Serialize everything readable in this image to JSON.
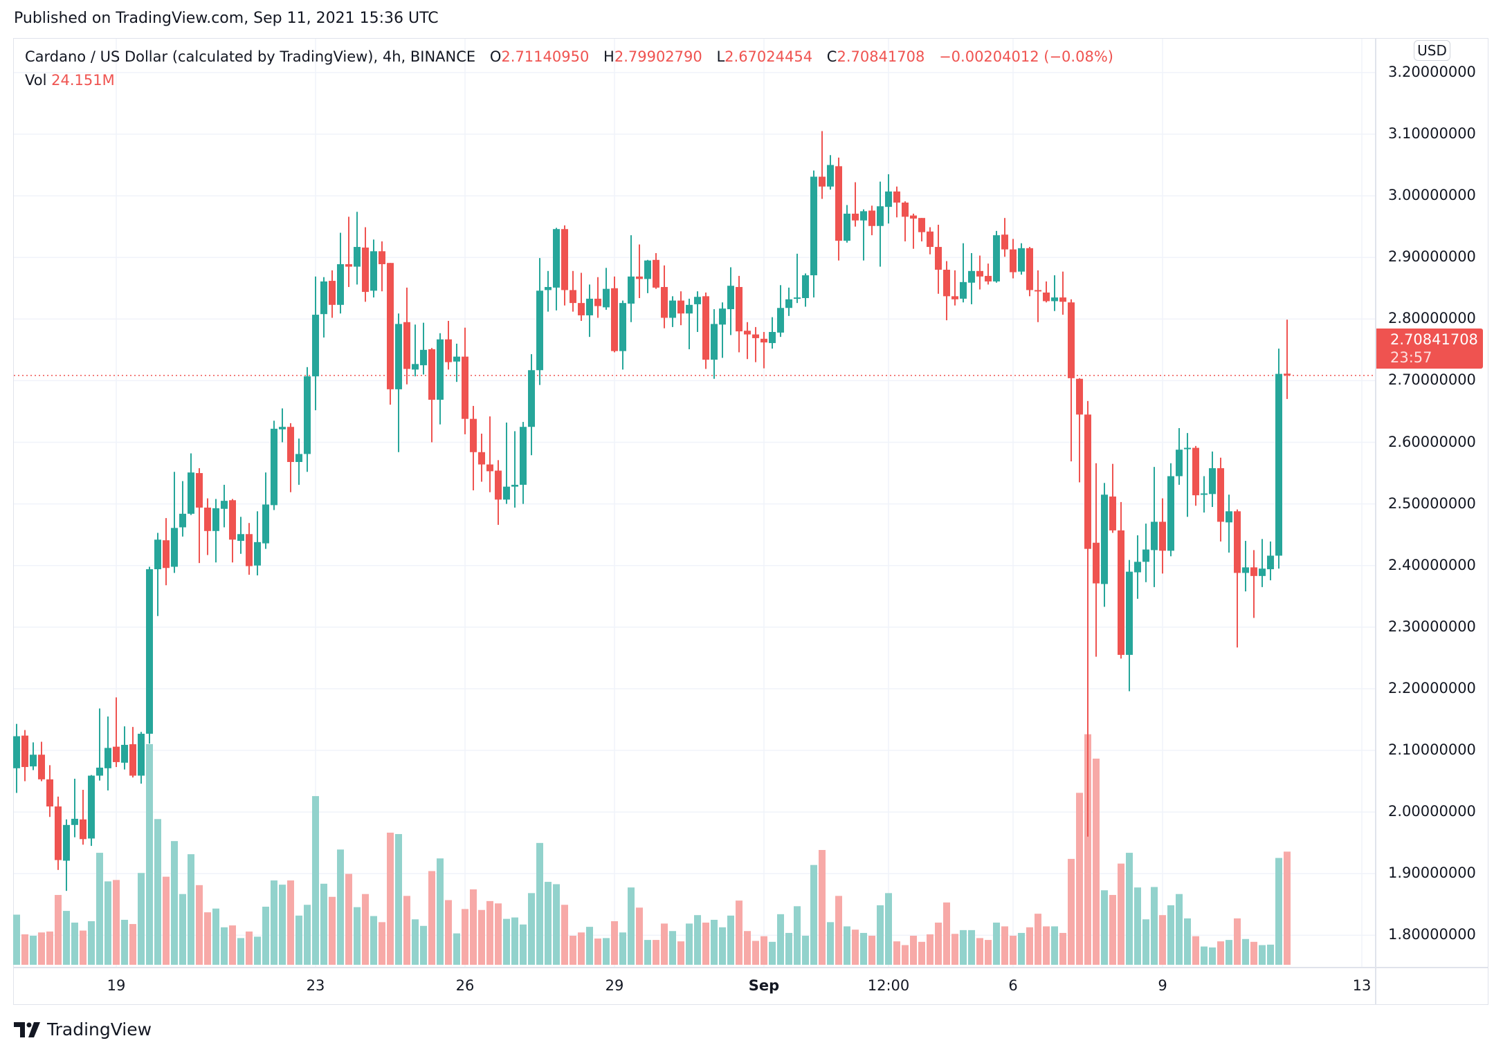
{
  "published": "Published on TradingView.com, Sep 11, 2021 15:36 UTC",
  "legend": {
    "symbol": "Cardano / US Dollar (calculated by TradingView), 4h, BINANCE",
    "o_label": "O",
    "o_value": "2.71140950",
    "h_label": "H",
    "h_value": "2.79902790",
    "l_label": "L",
    "l_value": "2.67024454",
    "c_label": "C",
    "c_value": "2.70841708",
    "change": "−0.00204012 (−0.08%)",
    "vol_label": "Vol",
    "vol_value": "24.151M"
  },
  "currency_button": "USD",
  "last_price": {
    "value": "2.70841708",
    "countdown": "23:57"
  },
  "logo_text": "TradingView",
  "colors": {
    "up": "#26a69a",
    "down": "#ef5350",
    "up_volume": "#92d2cc",
    "down_volume": "#f7a9a7",
    "grid": "#f0f3fa",
    "text": "#131722"
  },
  "chart_data": {
    "type": "candlestick",
    "interval": "4h",
    "y_ticks": [
      "3.20000000",
      "3.10000000",
      "3.00000000",
      "2.90000000",
      "2.80000000",
      "2.70000000",
      "2.60000000",
      "2.50000000",
      "2.40000000",
      "2.30000000",
      "2.20000000",
      "2.10000000",
      "2.00000000",
      "1.90000000",
      "1.80000000"
    ],
    "x_ticks": [
      "19",
      "23",
      "26",
      "29",
      "Sep",
      "12:00",
      "6",
      "9",
      "13"
    ],
    "ylim": [
      1.75,
      3.2
    ],
    "grid": true,
    "volume_unit": "M",
    "candle_fields": [
      "open",
      "high",
      "low",
      "close",
      "volume"
    ],
    "candles": [
      [
        2.071,
        2.143,
        2.031,
        2.123,
        10.7
      ],
      [
        2.124,
        2.133,
        2.05,
        2.073,
        6.5
      ],
      [
        2.074,
        2.113,
        2.068,
        2.093,
        6.2
      ],
      [
        2.093,
        2.114,
        2.05,
        2.053,
        6.9
      ],
      [
        2.053,
        2.076,
        1.992,
        2.009,
        7.1
      ],
      [
        2.009,
        2.025,
        1.906,
        1.922,
        14.9
      ],
      [
        1.921,
        1.988,
        1.872,
        1.979,
        11.5
      ],
      [
        1.979,
        2.054,
        1.959,
        1.989,
        9.0
      ],
      [
        1.988,
        2.036,
        1.947,
        1.956,
        7.3
      ],
      [
        1.957,
        2.06,
        1.945,
        2.059,
        9.3
      ],
      [
        2.059,
        2.168,
        2.051,
        2.072,
        23.9
      ],
      [
        2.071,
        2.155,
        2.035,
        2.104,
        17.8
      ],
      [
        2.106,
        2.186,
        2.073,
        2.081,
        18.1
      ],
      [
        2.08,
        2.139,
        2.069,
        2.109,
        9.6
      ],
      [
        2.11,
        2.138,
        2.056,
        2.059,
        8.7
      ],
      [
        2.059,
        2.13,
        2.046,
        2.127,
        19.6
      ],
      [
        2.127,
        2.398,
        2.111,
        2.394,
        47.1
      ],
      [
        2.394,
        2.453,
        2.318,
        2.442,
        31.1
      ],
      [
        2.441,
        2.477,
        2.368,
        2.396,
        18.8
      ],
      [
        2.398,
        2.552,
        2.388,
        2.461,
        26.4
      ],
      [
        2.462,
        2.537,
        2.447,
        2.484,
        15.1
      ],
      [
        2.484,
        2.582,
        2.482,
        2.551,
        23.6
      ],
      [
        2.55,
        2.558,
        2.404,
        2.494,
        17.0
      ],
      [
        2.494,
        2.509,
        2.417,
        2.456,
        11.2
      ],
      [
        2.456,
        2.508,
        2.405,
        2.493,
        12.0
      ],
      [
        2.492,
        2.531,
        2.462,
        2.505,
        8.0
      ],
      [
        2.506,
        2.508,
        2.405,
        2.442,
        8.4
      ],
      [
        2.44,
        2.479,
        2.419,
        2.451,
        5.7
      ],
      [
        2.451,
        2.469,
        2.385,
        2.399,
        7.1
      ],
      [
        2.4,
        2.488,
        2.384,
        2.438,
        6.0
      ],
      [
        2.436,
        2.551,
        2.427,
        2.499,
        12.4
      ],
      [
        2.498,
        2.635,
        2.49,
        2.622,
        18.0
      ],
      [
        2.621,
        2.655,
        2.6,
        2.625,
        17.1
      ],
      [
        2.625,
        2.631,
        2.519,
        2.568,
        18.0
      ],
      [
        2.568,
        2.606,
        2.531,
        2.581,
        10.5
      ],
      [
        2.581,
        2.722,
        2.552,
        2.707,
        12.8
      ],
      [
        2.707,
        2.869,
        2.652,
        2.807,
        36.0
      ],
      [
        2.808,
        2.868,
        2.77,
        2.861,
        17.3
      ],
      [
        2.862,
        2.879,
        2.802,
        2.823,
        14.5
      ],
      [
        2.823,
        2.94,
        2.809,
        2.889,
        24.6
      ],
      [
        2.889,
        2.966,
        2.852,
        2.885,
        19.4
      ],
      [
        2.885,
        2.974,
        2.856,
        2.917,
        12.3
      ],
      [
        2.916,
        2.949,
        2.828,
        2.844,
        15.1
      ],
      [
        2.846,
        2.929,
        2.835,
        2.91,
        10.4
      ],
      [
        2.91,
        2.926,
        2.845,
        2.889,
        9.1
      ],
      [
        2.891,
        2.891,
        2.661,
        2.686,
        28.2
      ],
      [
        2.686,
        2.809,
        2.584,
        2.792,
        27.9
      ],
      [
        2.795,
        2.851,
        2.694,
        2.719,
        14.7
      ],
      [
        2.718,
        2.791,
        2.707,
        2.727,
        9.7
      ],
      [
        2.725,
        2.794,
        2.71,
        2.75,
        8.3
      ],
      [
        2.751,
        2.753,
        2.6,
        2.669,
        20.0
      ],
      [
        2.669,
        2.777,
        2.629,
        2.767,
        22.7
      ],
      [
        2.767,
        2.797,
        2.718,
        2.73,
        13.8
      ],
      [
        2.731,
        2.76,
        2.698,
        2.739,
        6.7
      ],
      [
        2.739,
        2.786,
        2.613,
        2.638,
        11.9
      ],
      [
        2.638,
        2.659,
        2.522,
        2.584,
        16.1
      ],
      [
        2.584,
        2.614,
        2.536,
        2.564,
        11.7
      ],
      [
        2.564,
        2.642,
        2.519,
        2.553,
        13.6
      ],
      [
        2.554,
        2.571,
        2.466,
        2.507,
        13.1
      ],
      [
        2.507,
        2.632,
        2.5,
        2.528,
        9.8
      ],
      [
        2.528,
        2.618,
        2.494,
        2.531,
        10.1
      ],
      [
        2.531,
        2.633,
        2.5,
        2.625,
        8.6
      ],
      [
        2.625,
        2.743,
        2.579,
        2.717,
        15.3
      ],
      [
        2.717,
        2.899,
        2.693,
        2.846,
        26.0
      ],
      [
        2.847,
        2.878,
        2.812,
        2.852,
        17.7
      ],
      [
        2.851,
        2.948,
        2.814,
        2.946,
        17.2
      ],
      [
        2.946,
        2.952,
        2.822,
        2.847,
        12.8
      ],
      [
        2.847,
        2.878,
        2.812,
        2.826,
        6.2
      ],
      [
        2.826,
        2.875,
        2.797,
        2.806,
        6.9
      ],
      [
        2.806,
        2.856,
        2.771,
        2.833,
        8.1
      ],
      [
        2.833,
        2.868,
        2.802,
        2.821,
        5.6
      ],
      [
        2.819,
        2.883,
        2.815,
        2.849,
        5.7
      ],
      [
        2.85,
        2.869,
        2.746,
        2.748,
        9.3
      ],
      [
        2.748,
        2.83,
        2.718,
        2.826,
        6.9
      ],
      [
        2.825,
        2.936,
        2.795,
        2.869,
        16.5
      ],
      [
        2.869,
        2.921,
        2.834,
        2.865,
        12.2
      ],
      [
        2.865,
        2.896,
        2.842,
        2.895,
        5.3
      ],
      [
        2.896,
        2.907,
        2.849,
        2.851,
        5.3
      ],
      [
        2.852,
        2.887,
        2.785,
        2.802,
        8.8
      ],
      [
        2.802,
        2.837,
        2.787,
        2.83,
        7.2
      ],
      [
        2.83,
        2.845,
        2.79,
        2.809,
        5.0
      ],
      [
        2.809,
        2.833,
        2.751,
        2.823,
        8.8
      ],
      [
        2.824,
        2.845,
        2.779,
        2.836,
        10.6
      ],
      [
        2.837,
        2.843,
        2.719,
        2.734,
        9.0
      ],
      [
        2.734,
        2.816,
        2.703,
        2.792,
        9.6
      ],
      [
        2.791,
        2.827,
        2.737,
        2.817,
        8.0
      ],
      [
        2.816,
        2.884,
        2.774,
        2.854,
        10.5
      ],
      [
        2.852,
        2.87,
        2.746,
        2.78,
        13.7
      ],
      [
        2.781,
        2.795,
        2.735,
        2.775,
        7.2
      ],
      [
        2.775,
        2.787,
        2.73,
        2.769,
        5.1
      ],
      [
        2.768,
        2.779,
        2.72,
        2.762,
        6.1
      ],
      [
        2.761,
        2.803,
        2.752,
        2.779,
        4.9
      ],
      [
        2.778,
        2.855,
        2.771,
        2.818,
        10.8
      ],
      [
        2.818,
        2.851,
        2.805,
        2.832,
        6.8
      ],
      [
        2.833,
        2.906,
        2.826,
        2.835,
        12.5
      ],
      [
        2.834,
        2.874,
        2.82,
        2.871,
        6.2
      ],
      [
        2.871,
        3.041,
        2.835,
        3.031,
        21.3
      ],
      [
        3.031,
        3.105,
        2.995,
        3.015,
        24.5
      ],
      [
        3.015,
        3.066,
        3.01,
        3.05,
        9.1
      ],
      [
        3.048,
        3.062,
        2.895,
        2.927,
        14.7
      ],
      [
        2.927,
        2.985,
        2.924,
        2.971,
        8.2
      ],
      [
        2.971,
        3.022,
        2.95,
        2.96,
        7.5
      ],
      [
        2.96,
        2.978,
        2.895,
        2.975,
        6.8
      ],
      [
        2.976,
        2.984,
        2.936,
        2.951,
        6.2
      ],
      [
        2.951,
        3.023,
        2.885,
        2.983,
        12.7
      ],
      [
        2.982,
        3.035,
        2.955,
        3.007,
        15.3
      ],
      [
        3.007,
        3.015,
        2.965,
        2.989,
        5.0
      ],
      [
        2.989,
        2.991,
        2.926,
        2.966,
        4.2
      ],
      [
        2.968,
        2.971,
        2.914,
        2.963,
        6.2
      ],
      [
        2.964,
        2.964,
        2.926,
        2.941,
        4.9
      ],
      [
        2.942,
        2.949,
        2.905,
        2.917,
        6.5
      ],
      [
        2.917,
        2.953,
        2.841,
        2.88,
        9.0
      ],
      [
        2.88,
        2.894,
        2.798,
        2.837,
        13.3
      ],
      [
        2.837,
        2.879,
        2.822,
        2.832,
        6.6
      ],
      [
        2.833,
        2.923,
        2.827,
        2.86,
        7.4
      ],
      [
        2.859,
        2.907,
        2.824,
        2.878,
        7.4
      ],
      [
        2.878,
        2.903,
        2.848,
        2.869,
        5.7
      ],
      [
        2.87,
        2.89,
        2.856,
        2.861,
        5.3
      ],
      [
        2.861,
        2.943,
        2.859,
        2.936,
        9.0
      ],
      [
        2.937,
        2.964,
        2.901,
        2.913,
        8.2
      ],
      [
        2.913,
        2.93,
        2.866,
        2.876,
        6.2
      ],
      [
        2.877,
        2.923,
        2.872,
        2.915,
        6.8
      ],
      [
        2.915,
        2.917,
        2.837,
        2.847,
        8.0
      ],
      [
        2.847,
        2.879,
        2.795,
        2.845,
        10.9
      ],
      [
        2.843,
        2.861,
        2.827,
        2.829,
        8.2
      ],
      [
        2.829,
        2.871,
        2.813,
        2.835,
        8.2
      ],
      [
        2.835,
        2.877,
        2.807,
        2.828,
        6.8
      ],
      [
        2.827,
        2.832,
        2.569,
        2.704,
        22.6
      ],
      [
        2.703,
        2.704,
        2.535,
        2.645,
        36.7
      ],
      [
        2.645,
        2.667,
        1.96,
        2.427,
        49.2
      ],
      [
        2.437,
        2.566,
        2.252,
        2.371,
        44.0
      ],
      [
        2.37,
        2.534,
        2.333,
        2.515,
        15.9
      ],
      [
        2.512,
        2.565,
        2.453,
        2.457,
        14.9
      ],
      [
        2.457,
        2.503,
        2.249,
        2.255,
        21.6
      ],
      [
        2.255,
        2.409,
        2.196,
        2.39,
        23.9
      ],
      [
        2.389,
        2.449,
        2.346,
        2.406,
        16.5
      ],
      [
        2.406,
        2.468,
        2.373,
        2.426,
        9.7
      ],
      [
        2.425,
        2.56,
        2.365,
        2.471,
        16.6
      ],
      [
        2.471,
        2.509,
        2.387,
        2.424,
        10.6
      ],
      [
        2.424,
        2.566,
        2.415,
        2.545,
        12.7
      ],
      [
        2.545,
        2.623,
        2.531,
        2.588,
        15.1
      ],
      [
        2.589,
        2.615,
        2.479,
        2.591,
        9.9
      ],
      [
        2.591,
        2.594,
        2.497,
        2.514,
        6.1
      ],
      [
        2.515,
        2.545,
        2.486,
        2.517,
        3.9
      ],
      [
        2.516,
        2.585,
        2.495,
        2.558,
        3.7
      ],
      [
        2.558,
        2.575,
        2.439,
        2.471,
        5.0
      ],
      [
        2.47,
        2.515,
        2.421,
        2.488,
        5.3
      ],
      [
        2.488,
        2.491,
        2.267,
        2.388,
        9.9
      ],
      [
        2.388,
        2.44,
        2.358,
        2.397,
        5.5
      ],
      [
        2.397,
        2.425,
        2.315,
        2.383,
        4.9
      ],
      [
        2.383,
        2.443,
        2.365,
        2.395,
        4.2
      ],
      [
        2.394,
        2.439,
        2.376,
        2.416,
        4.3
      ],
      [
        2.416,
        2.752,
        2.395,
        2.711,
        22.8
      ],
      [
        2.7114095,
        2.7990279,
        2.67024454,
        2.70841708,
        24.151
      ]
    ],
    "last_price": 2.70841708
  }
}
